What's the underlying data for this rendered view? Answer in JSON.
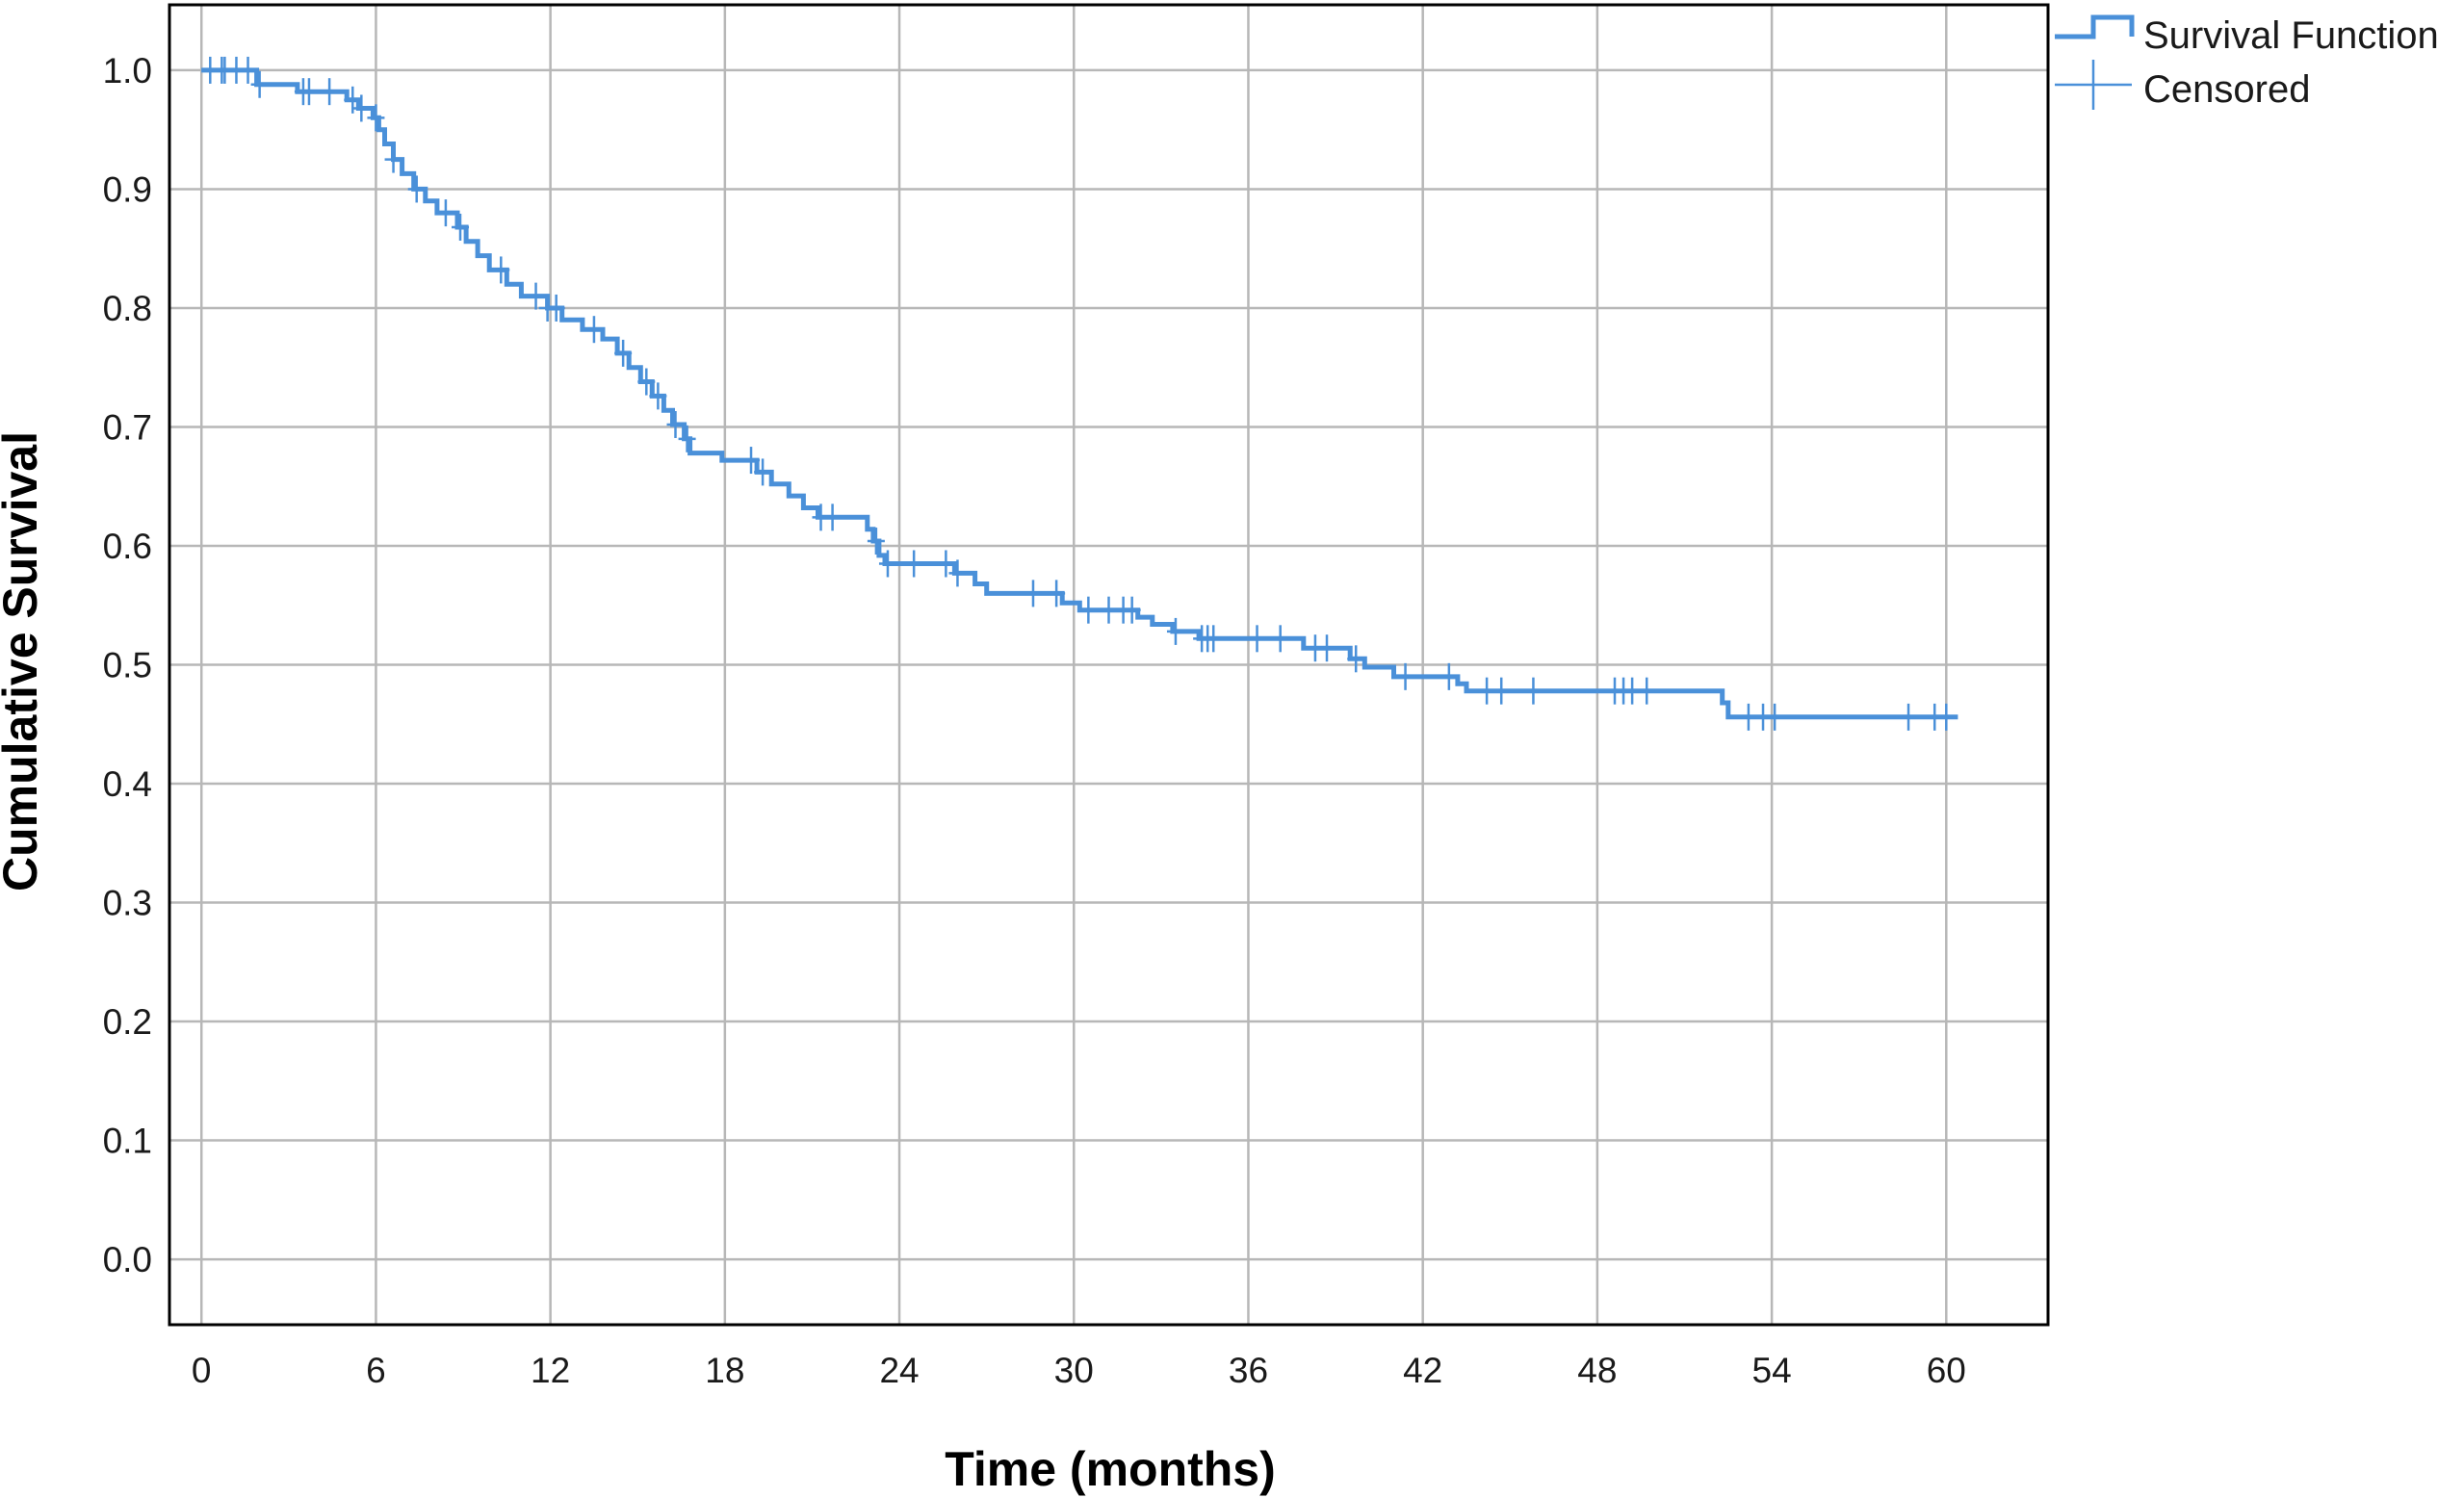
{
  "chart_data": {
    "type": "line",
    "subtype": "kaplan-meier step",
    "title": "",
    "xlabel": "Time (months)",
    "ylabel": "Cumulative Survival",
    "xlim": [
      -1.1,
      63.5
    ],
    "ylim": [
      -0.055,
      1.055
    ],
    "xticks": [
      "0",
      "6",
      "12",
      "18",
      "24",
      "30",
      "36",
      "42",
      "48",
      "54",
      "60"
    ],
    "yticks": [
      "0.0",
      "0.1",
      "0.2",
      "0.3",
      "0.4",
      "0.5",
      "0.6",
      "0.7",
      "0.8",
      "0.9",
      "1.0"
    ],
    "grid": true,
    "legend": {
      "placement": "top-right",
      "entries": [
        "Survival Function",
        "Censored"
      ]
    },
    "line_color": "#4a90d9",
    "series": [
      {
        "name": "Survival Function",
        "end_x": 60.4,
        "steps": [
          [
            0,
            1.0
          ],
          [
            1.9,
            0.988
          ],
          [
            3.3,
            0.982
          ],
          [
            5.0,
            0.975
          ],
          [
            5.4,
            0.968
          ],
          [
            5.9,
            0.96
          ],
          [
            6.1,
            0.95
          ],
          [
            6.3,
            0.938
          ],
          [
            6.6,
            0.925
          ],
          [
            6.9,
            0.913
          ],
          [
            7.3,
            0.9
          ],
          [
            7.7,
            0.89
          ],
          [
            8.1,
            0.88
          ],
          [
            8.8,
            0.868
          ],
          [
            9.1,
            0.856
          ],
          [
            9.5,
            0.844
          ],
          [
            9.9,
            0.832
          ],
          [
            10.5,
            0.82
          ],
          [
            11.0,
            0.81
          ],
          [
            11.9,
            0.8
          ],
          [
            12.4,
            0.79
          ],
          [
            13.1,
            0.782
          ],
          [
            13.8,
            0.774
          ],
          [
            14.3,
            0.762
          ],
          [
            14.7,
            0.75
          ],
          [
            15.1,
            0.738
          ],
          [
            15.5,
            0.726
          ],
          [
            15.9,
            0.714
          ],
          [
            16.2,
            0.702
          ],
          [
            16.6,
            0.69
          ],
          [
            16.8,
            0.678
          ],
          [
            17.9,
            0.672
          ],
          [
            19.1,
            0.662
          ],
          [
            19.6,
            0.652
          ],
          [
            20.2,
            0.642
          ],
          [
            20.7,
            0.632
          ],
          [
            21.2,
            0.624
          ],
          [
            22.9,
            0.614
          ],
          [
            23.1,
            0.604
          ],
          [
            23.3,
            0.592
          ],
          [
            23.5,
            0.585
          ],
          [
            25.9,
            0.577
          ],
          [
            26.6,
            0.568
          ],
          [
            27.0,
            0.56
          ],
          [
            29.6,
            0.552
          ],
          [
            30.2,
            0.546
          ],
          [
            32.2,
            0.54
          ],
          [
            32.7,
            0.534
          ],
          [
            33.4,
            0.528
          ],
          [
            34.3,
            0.522
          ],
          [
            37.9,
            0.514
          ],
          [
            39.5,
            0.505
          ],
          [
            40.0,
            0.498
          ],
          [
            41.0,
            0.49
          ],
          [
            43.2,
            0.484
          ],
          [
            43.5,
            0.478
          ],
          [
            52.3,
            0.468
          ],
          [
            52.5,
            0.456
          ]
        ],
        "censored": [
          [
            0.3,
            1.0
          ],
          [
            0.7,
            1.0
          ],
          [
            0.8,
            1.0
          ],
          [
            1.2,
            1.0
          ],
          [
            1.6,
            1.0
          ],
          [
            2.0,
            0.988
          ],
          [
            3.5,
            0.982
          ],
          [
            3.7,
            0.982
          ],
          [
            4.4,
            0.982
          ],
          [
            5.2,
            0.975
          ],
          [
            5.5,
            0.968
          ],
          [
            6.0,
            0.96
          ],
          [
            6.6,
            0.925
          ],
          [
            7.4,
            0.9
          ],
          [
            8.4,
            0.88
          ],
          [
            8.9,
            0.868
          ],
          [
            10.3,
            0.832
          ],
          [
            11.5,
            0.81
          ],
          [
            11.9,
            0.8
          ],
          [
            12.2,
            0.8
          ],
          [
            13.5,
            0.782
          ],
          [
            14.5,
            0.762
          ],
          [
            15.3,
            0.738
          ],
          [
            15.7,
            0.726
          ],
          [
            16.3,
            0.702
          ],
          [
            16.7,
            0.69
          ],
          [
            18.9,
            0.672
          ],
          [
            19.3,
            0.662
          ],
          [
            21.3,
            0.624
          ],
          [
            21.7,
            0.624
          ],
          [
            23.2,
            0.604
          ],
          [
            23.6,
            0.585
          ],
          [
            24.5,
            0.585
          ],
          [
            25.6,
            0.585
          ],
          [
            26.0,
            0.577
          ],
          [
            28.6,
            0.56
          ],
          [
            29.4,
            0.56
          ],
          [
            30.5,
            0.546
          ],
          [
            31.2,
            0.546
          ],
          [
            31.7,
            0.546
          ],
          [
            32.0,
            0.546
          ],
          [
            33.5,
            0.528
          ],
          [
            34.4,
            0.522
          ],
          [
            34.6,
            0.522
          ],
          [
            34.8,
            0.522
          ],
          [
            36.3,
            0.522
          ],
          [
            37.1,
            0.522
          ],
          [
            38.3,
            0.514
          ],
          [
            38.7,
            0.514
          ],
          [
            39.7,
            0.505
          ],
          [
            41.4,
            0.49
          ],
          [
            42.9,
            0.49
          ],
          [
            44.2,
            0.478
          ],
          [
            44.7,
            0.478
          ],
          [
            45.8,
            0.478
          ],
          [
            48.6,
            0.478
          ],
          [
            48.9,
            0.478
          ],
          [
            49.2,
            0.478
          ],
          [
            49.7,
            0.478
          ],
          [
            53.2,
            0.456
          ],
          [
            53.7,
            0.456
          ],
          [
            54.1,
            0.456
          ],
          [
            58.7,
            0.456
          ],
          [
            59.6,
            0.456
          ],
          [
            60.0,
            0.456
          ]
        ]
      }
    ]
  }
}
